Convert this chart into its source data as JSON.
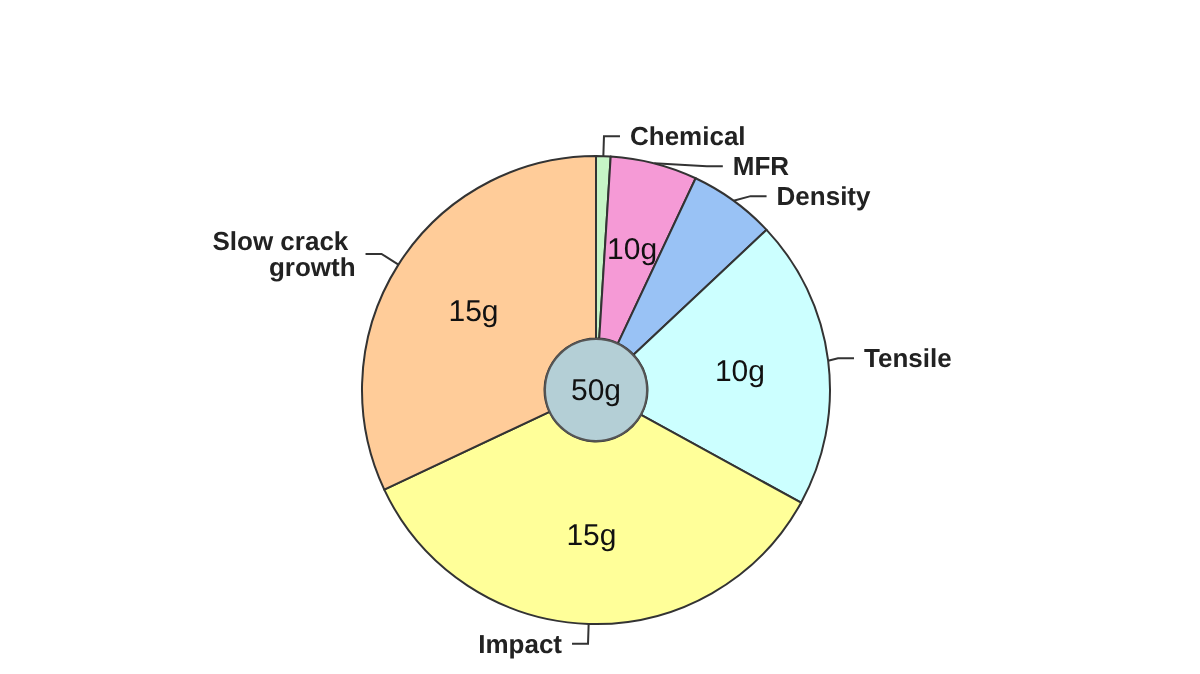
{
  "chart_data": {
    "type": "donut",
    "categories": [
      "Chemical",
      "MFR",
      "Density",
      "Tensile",
      "Impact",
      "Slow crack growth"
    ],
    "values": [
      1,
      6,
      6,
      20,
      35,
      32
    ],
    "colors": [
      "#c6f5c6",
      "#f59ad6",
      "#99c2f5",
      "#ccffff",
      "#ffff99",
      "#ffcc99"
    ],
    "annotations": [
      "50g",
      {
        "text": "10g",
        "x": "MFR"
      },
      {
        "text": "10g",
        "x": "Tensile"
      },
      {
        "text": "15g",
        "x": "Impact"
      },
      {
        "text": "15g",
        "x": "Slow crack growth"
      }
    ],
    "legend": false
  }
}
